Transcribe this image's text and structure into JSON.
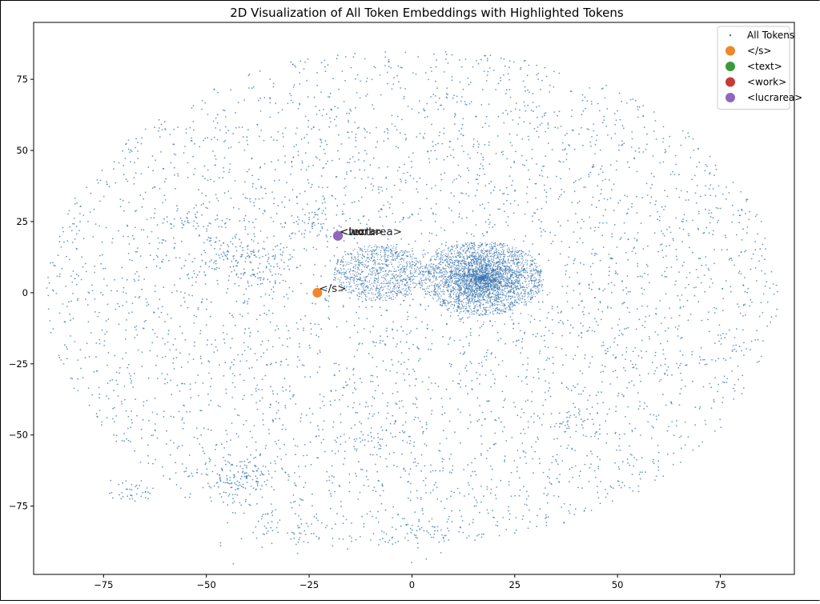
{
  "chart_data": {
    "type": "scatter",
    "title": "2D Visualization of All Token Embeddings with Highlighted Tokens",
    "xlabel": "",
    "ylabel": "",
    "xlim": [
      -92,
      93
    ],
    "ylim": [
      -99,
      95
    ],
    "xticks": [
      -75,
      -50,
      -25,
      0,
      25,
      50,
      75
    ],
    "yticks": [
      -75,
      -50,
      -25,
      0,
      25,
      50,
      75
    ],
    "grid": false,
    "legend_position": "top-right",
    "background_points": {
      "name": "All Tokens",
      "color": "#3b75af",
      "distribution": "elliptical cloud centered near (0, 0) with x range about -90..90 and y range about -90..87; dense clusters near (17, 5) and (-8, 7); small clusters near (-25, 24), (-43, 14), (-10, -52), (-42, -65), (-68, -70), (-30, -84), (2, -85)"
    },
    "series": [
      {
        "name": "</s>",
        "color": "#f0862a",
        "points": [
          {
            "x": -23,
            "y": 0,
            "label": "</s>"
          }
        ]
      },
      {
        "name": "<text>",
        "color": "#3a9a3a",
        "points": [
          {
            "x": -18,
            "y": 20,
            "label": "<text>"
          }
        ]
      },
      {
        "name": "<work>",
        "color": "#c73a35",
        "points": [
          {
            "x": -18,
            "y": 20,
            "label": "<work>"
          }
        ]
      },
      {
        "name": "<lucrarea>",
        "color": "#9066bf",
        "points": [
          {
            "x": -18,
            "y": 20,
            "label": "<lucrarea>"
          }
        ]
      }
    ]
  }
}
